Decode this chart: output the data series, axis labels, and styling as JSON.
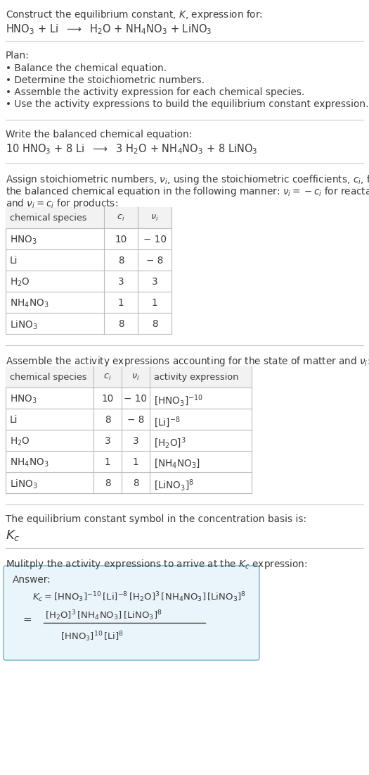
{
  "title_line1": "Construct the equilibrium constant, $K$, expression for:",
  "title_line2": "$\\mathrm{HNO_3}$ + Li  $\\longrightarrow$  $\\mathrm{H_2O}$ + $\\mathrm{NH_4NO_3}$ + $\\mathrm{LiNO_3}$",
  "plan_header": "Plan:",
  "plan_bullets": [
    "• Balance the chemical equation.",
    "• Determine the stoichiometric numbers.",
    "• Assemble the activity expression for each chemical species.",
    "• Use the activity expressions to build the equilibrium constant expression."
  ],
  "balanced_header": "Write the balanced chemical equation:",
  "balanced_eq": "10 $\\mathrm{HNO_3}$ + 8 Li  $\\longrightarrow$  3 $\\mathrm{H_2O}$ + $\\mathrm{NH_4NO_3}$ + 8 $\\mathrm{LiNO_3}$",
  "stoich_text1": "Assign stoichiometric numbers, $\\nu_i$, using the stoichiometric coefficients, $c_i$, from",
  "stoich_text2": "the balanced chemical equation in the following manner: $\\nu_i = -c_i$ for reactants",
  "stoich_text3": "and $\\nu_i = c_i$ for products:",
  "table1_headers": [
    "chemical species",
    "$c_i$",
    "$\\nu_i$"
  ],
  "table1_rows": [
    [
      "$\\mathrm{HNO_3}$",
      "10",
      "− 10"
    ],
    [
      "Li",
      "8",
      "− 8"
    ],
    [
      "$\\mathrm{H_2O}$",
      "3",
      "3"
    ],
    [
      "$\\mathrm{NH_4NO_3}$",
      "1",
      "1"
    ],
    [
      "$\\mathrm{LiNO_3}$",
      "8",
      "8"
    ]
  ],
  "activity_header": "Assemble the activity expressions accounting for the state of matter and $\\nu_i$:",
  "table2_headers": [
    "chemical species",
    "$c_i$",
    "$\\nu_i$",
    "activity expression"
  ],
  "table2_rows": [
    [
      "$\\mathrm{HNO_3}$",
      "10",
      "− 10",
      "$[\\mathrm{HNO_3}]^{-10}$"
    ],
    [
      "Li",
      "8",
      "− 8",
      "$[\\mathrm{Li}]^{-8}$"
    ],
    [
      "$\\mathrm{H_2O}$",
      "3",
      "3",
      "$[\\mathrm{H_2O}]^{3}$"
    ],
    [
      "$\\mathrm{NH_4NO_3}$",
      "1",
      "1",
      "$[\\mathrm{NH_4NO_3}]$"
    ],
    [
      "$\\mathrm{LiNO_3}$",
      "8",
      "8",
      "$[\\mathrm{LiNO_3}]^{8}$"
    ]
  ],
  "kc_header": "The equilibrium constant symbol in the concentration basis is:",
  "kc_symbol": "$K_c$",
  "multiply_header": "Mulitply the activity expressions to arrive at the $K_c$ expression:",
  "answer_label": "Answer:",
  "answer_line1": "$K_c = [\\mathrm{HNO_3}]^{-10}\\,[\\mathrm{Li}]^{-8}\\,[\\mathrm{H_2O}]^{3}\\,[\\mathrm{NH_4NO_3}]\\,[\\mathrm{LiNO_3}]^{8}$",
  "answer_numerator": "$[\\mathrm{H_2O}]^{3}\\,[\\mathrm{NH_4NO_3}]\\,[\\mathrm{LiNO_3}]^{8}$",
  "answer_denominator": "$[\\mathrm{HNO_3}]^{10}\\,[\\mathrm{Li}]^{8}$",
  "bg_color": "#ffffff",
  "text_color": "#3a3a3a",
  "table_border_color": "#bbbbbb",
  "answer_box_bg": "#eaf5fb",
  "answer_box_border": "#85bdd4",
  "font_size": 9.8,
  "font_family": "DejaVu Sans"
}
